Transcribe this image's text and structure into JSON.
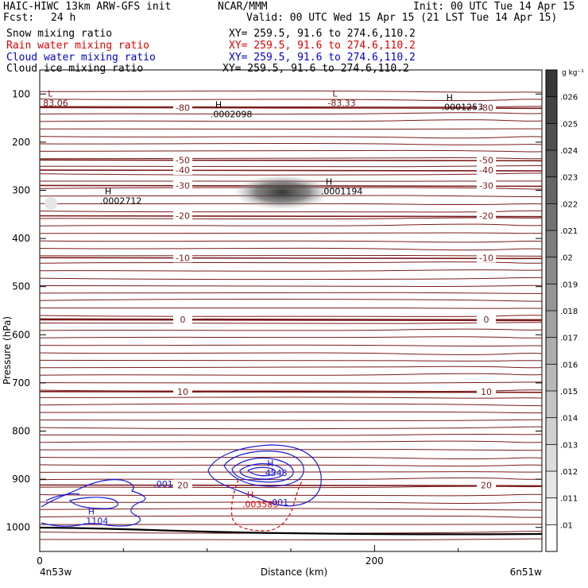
{
  "header": {
    "model": "HAIC-HIWC 13km ARW-GFS init",
    "org": "NCAR/MMM",
    "init": "Init: 00 UTC Tue 14 Apr 15",
    "fcst_label": "Fcst:",
    "fcst_value": "24 h",
    "valid": "Valid: 00 UTC Wed 15 Apr 15 (21 LST Tue 14 Apr 15)",
    "fields": [
      {
        "name": "Snow mixing ratio",
        "xy": "XY= 259.5, 91.6 to 274.6,110.2",
        "color": "#000000"
      },
      {
        "name": "Rain water mixing ratio",
        "xy": "XY= 259.5, 91.6 to 274.6,110.2",
        "color": "#e00000"
      },
      {
        "name": "Cloud water mixing ratio",
        "xy": "XY= 259.5, 91.6 to 274.6,110.2",
        "color": "#0000d0"
      },
      {
        "name": "Cloud ice mixing ratio",
        "xy": "XY= 259.5, 91.6 to 274.6,110.2",
        "color": "#000000"
      }
    ]
  },
  "chart_data": {
    "type": "contour",
    "xlabel": "Distance (km)",
    "ylabel": "Pressure (hPa)",
    "xlim": [
      0,
      300
    ],
    "ylim": [
      1050,
      50
    ],
    "xticks": [
      0,
      200
    ],
    "yticks": [
      100,
      200,
      300,
      400,
      500,
      600,
      700,
      800,
      900,
      1000
    ],
    "x_endpoints": {
      "left": "4n53w",
      "right": "6n51w"
    },
    "colorbar": {
      "unit": "g kg⁻¹",
      "ticks": [
        ".01",
        ".011",
        ".012",
        ".013",
        ".014",
        ".015",
        ".016",
        ".017",
        ".018",
        ".019",
        ".02",
        ".021",
        ".022",
        ".023",
        ".024",
        ".025",
        ".026"
      ]
    },
    "temperature_contours": [
      {
        "label": "-80",
        "p": 128
      },
      {
        "label": "-50",
        "p": 237
      },
      {
        "label": "-40",
        "p": 258
      },
      {
        "label": "-30",
        "p": 290
      },
      {
        "label": "-20",
        "p": 353
      },
      {
        "label": "-10",
        "p": 440
      },
      {
        "label": "0",
        "p": 568
      },
      {
        "label": "10",
        "p": 718
      },
      {
        "label": "20",
        "p": 912
      }
    ],
    "extrema_labels": [
      {
        "type": "L",
        "value": "83.06",
        "x": 2,
        "p": 112
      },
      {
        "type": "L",
        "value": "-83.33",
        "x": 172,
        "p": 112
      },
      {
        "type": "H",
        "value": ".0002098",
        "x": 102,
        "p": 135
      },
      {
        "type": "H",
        "value": ".0001253",
        "x": 240,
        "p": 120
      },
      {
        "type": "H",
        "value": ".0002712",
        "x": 36,
        "p": 315
      },
      {
        "type": "H",
        "value": ".0001194",
        "x": 168,
        "p": 295
      },
      {
        "type": "H",
        "value": ".4543",
        "x": 133,
        "p": 880
      },
      {
        "type": "H",
        "value": ".003583",
        "x": 121,
        "p": 945
      },
      {
        "type": "H",
        "value": ".1104",
        "x": 26,
        "p": 980
      }
    ],
    "cloud_water_labels": [
      {
        "value": ".001",
        "x": 68,
        "p": 910
      },
      {
        "value": ".001",
        "x": 137,
        "p": 948
      }
    ]
  }
}
